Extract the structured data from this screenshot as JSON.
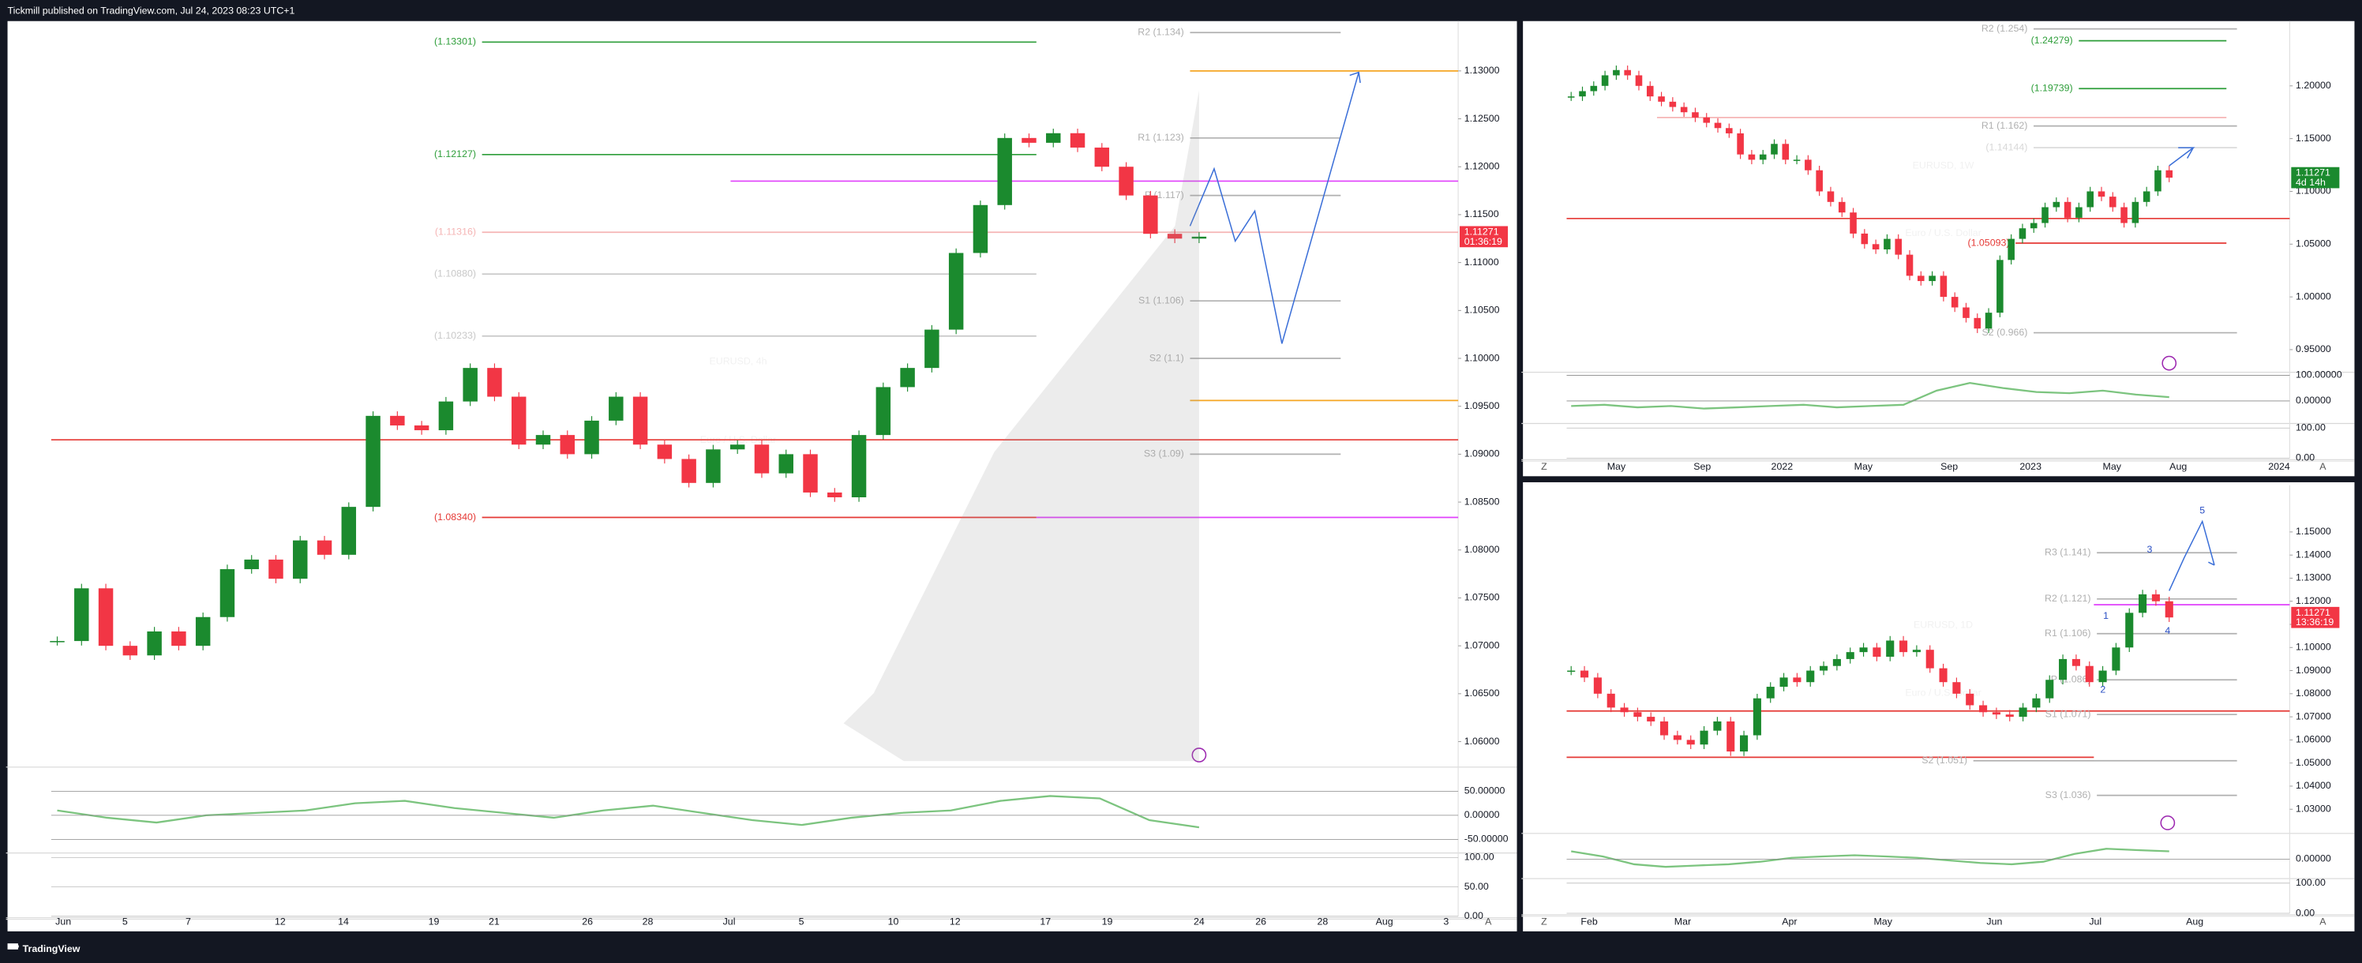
{
  "header": {
    "title": "Tickmill published on TradingView.com, Jul 24, 2023 08:23 UTC+1"
  },
  "footer": {
    "brand": "TradingView"
  },
  "panels": [
    {
      "symbol": "EURUSD, 4h",
      "description": "Euro / U.S. Dollar",
      "ylim": [
        1.0575,
        1.1352
      ],
      "yticks": [
        {
          "value": 1.06,
          "label": "1.06000"
        },
        {
          "value": 1.065,
          "label": "1.06500"
        },
        {
          "value": 1.07,
          "label": "1.07000"
        },
        {
          "value": 1.075,
          "label": "1.07500"
        },
        {
          "value": 1.08,
          "label": "1.08000"
        },
        {
          "value": 1.085,
          "label": "1.08500"
        },
        {
          "value": 1.09,
          "label": "1.09000"
        },
        {
          "value": 1.095,
          "label": "1.09500"
        },
        {
          "value": 1.1,
          "label": "1.10000"
        },
        {
          "value": 1.105,
          "label": "1.10500"
        },
        {
          "value": 1.11,
          "label": "1.11000"
        },
        {
          "value": 1.115,
          "label": "1.11500"
        },
        {
          "value": 1.12,
          "label": "1.12000"
        },
        {
          "value": 1.125,
          "label": "1.12500"
        },
        {
          "value": 1.13,
          "label": "1.13000"
        }
      ],
      "price_label": {
        "price": "1.11271",
        "countdown": "01:36:19",
        "color": "#f23645"
      },
      "closes": [
        1.0705,
        1.076,
        1.07,
        1.069,
        1.0715,
        1.07,
        1.073,
        1.078,
        1.079,
        1.077,
        1.081,
        1.0795,
        1.0845,
        1.094,
        1.093,
        1.0925,
        1.0955,
        1.099,
        1.096,
        1.091,
        1.092,
        1.09,
        1.0935,
        1.096,
        1.091,
        1.0895,
        1.087,
        1.0905,
        1.091,
        1.088,
        1.09,
        1.086,
        1.0855,
        1.092,
        1.097,
        1.099,
        1.103,
        1.111,
        1.116,
        1.123,
        1.1225,
        1.1235,
        1.122,
        1.12,
        1.117,
        1.113,
        1.1125,
        1.1127
      ],
      "levels": [
        {
          "label": "(1.13301)",
          "value": 1.13301,
          "color": "#2e9e3a"
        },
        {
          "label": "(1.12127)",
          "value": 1.12127,
          "color": "#2e9e3a"
        },
        {
          "label": "(1.11316)",
          "value": 1.11316,
          "color": "#f5b5b5"
        },
        {
          "label": "(1.10880)",
          "value": 1.1088,
          "color": "#c8c8c8"
        },
        {
          "label": "(1.10233)",
          "value": 1.10233,
          "color": "#c8c8c8"
        },
        {
          "label": "(1.08340)",
          "value": 1.0834,
          "color": "#e53935"
        },
        {
          "label": "R2 (1.134)",
          "value": 1.134,
          "color": "#b0b0b0"
        },
        {
          "label": "R1 (1.123)",
          "value": 1.123,
          "color": "#b0b0b0"
        },
        {
          "label": "P (1.117)",
          "value": 1.117,
          "color": "#b0b0b0"
        },
        {
          "label": "S1 (1.106)",
          "value": 1.106,
          "color": "#b0b0b0"
        },
        {
          "label": "S2 (1.1)",
          "value": 1.1,
          "color": "#b0b0b0"
        },
        {
          "label": "S3 (1.09)",
          "value": 1.09,
          "color": "#b0b0b0"
        }
      ],
      "lines": [
        {
          "value": 1.13,
          "color": "#f5a623"
        },
        {
          "value": 1.1185,
          "color": "#e040fb"
        },
        {
          "value": 1.0956,
          "color": "#f5a623"
        },
        {
          "value": 1.0915,
          "color": "#e53935"
        },
        {
          "value": 1.0834,
          "color": "#e040fb"
        }
      ],
      "osc_ylim": [
        -75,
        97
      ],
      "osc_ticks": [
        {
          "value": 50,
          "label": "50.00000"
        },
        {
          "value": 0,
          "label": "0.00000"
        },
        {
          "value": -50,
          "label": "-50.00000"
        }
      ],
      "osc_values": [
        10,
        -5,
        -15,
        0,
        5,
        10,
        25,
        30,
        15,
        5,
        -5,
        10,
        20,
        5,
        -10,
        -20,
        -5,
        5,
        10,
        30,
        40,
        35,
        -10,
        -25
      ],
      "osc2_ticks": [
        {
          "value": 100,
          "label": "100.00"
        },
        {
          "value": 50,
          "label": "50.00"
        },
        {
          "value": 0,
          "label": "0.00"
        }
      ],
      "time_labels": [
        "Jun",
        "5",
        "7",
        "12",
        "14",
        "19",
        "21",
        "26",
        "28",
        "Jul",
        "5",
        "10",
        "12",
        "17",
        "19",
        "24",
        "26",
        "28",
        "Aug",
        "3"
      ],
      "buttons": [
        "A"
      ]
    },
    {
      "symbol": "EURUSD, 1W",
      "description": "Euro / U.S. Dollar",
      "ylim": [
        0.93,
        1.2614
      ],
      "yticks": [
        {
          "value": 0.95,
          "label": "0.95000"
        },
        {
          "value": 1,
          "label": "1.00000"
        },
        {
          "value": 1.05,
          "label": "1.05000"
        },
        {
          "value": 1.1,
          "label": "1.10000"
        },
        {
          "value": 1.15,
          "label": "1.15000"
        },
        {
          "value": 1.2,
          "label": "1.20000"
        }
      ],
      "price_label": {
        "price": "1.11271",
        "countdown": "4d 14h",
        "color": "#1b8a2e"
      },
      "closes": [
        1.19,
        1.195,
        1.2,
        1.21,
        1.215,
        1.21,
        1.2,
        1.19,
        1.185,
        1.18,
        1.175,
        1.17,
        1.165,
        1.16,
        1.155,
        1.135,
        1.13,
        1.135,
        1.145,
        1.13,
        1.13,
        1.12,
        1.1,
        1.09,
        1.08,
        1.06,
        1.05,
        1.045,
        1.055,
        1.04,
        1.02,
        1.015,
        1.02,
        1,
        0.99,
        0.98,
        0.97,
        0.985,
        1.035,
        1.055,
        1.065,
        1.07,
        1.085,
        1.09,
        1.075,
        1.085,
        1.1,
        1.095,
        1.085,
        1.07,
        1.09,
        1.1,
        1.12,
        1.113
      ],
      "levels": [
        {
          "label": "R2 (1.254)",
          "value": 1.254,
          "color": "#b0b0b0"
        },
        {
          "label": "(1.24279)",
          "value": 1.24279,
          "color": "#2e9e3a"
        },
        {
          "label": "(1.19739)",
          "value": 1.19739,
          "color": "#2e9e3a"
        },
        {
          "label": "R1 (1.162)",
          "value": 1.162,
          "color": "#b0b0b0"
        },
        {
          "label": "(1.14144)",
          "value": 1.14144,
          "color": "#d8d8d8"
        },
        {
          "label": "(1.05093)",
          "value": 1.05093,
          "color": "#e53935"
        },
        {
          "label": "S2 (0.966)",
          "value": 0.966,
          "color": "#b0b0b0"
        }
      ],
      "lines": [
        {
          "value": 1.0743,
          "color": "#e53935"
        },
        {
          "value": 1.17,
          "color": "#f5b5b5"
        }
      ],
      "osc_ylim": [
        -82,
        106
      ],
      "osc_ticks": [
        {
          "value": 100,
          "label": "100.00000"
        },
        {
          "value": 0,
          "label": "0.00000"
        }
      ],
      "osc_values": [
        -20,
        -15,
        -25,
        -20,
        -30,
        -25,
        -20,
        -15,
        -25,
        -20,
        -15,
        40,
        70,
        50,
        35,
        30,
        40,
        25,
        15
      ],
      "osc2_ticks": [
        {
          "value": 100,
          "label": "100.00"
        },
        {
          "value": 0,
          "label": "0.00"
        }
      ],
      "time_labels": [
        "May",
        "Sep",
        "2022",
        "May",
        "Sep",
        "2023",
        "May",
        "Aug",
        "2024"
      ],
      "buttons": [
        "Z",
        "A"
      ]
    },
    {
      "symbol": "EURUSD, 1D",
      "description": "Euro / U.S. Dollar",
      "ylim": [
        1.0202,
        1.1702
      ],
      "yticks": [
        {
          "value": 1.03,
          "label": "1.03000"
        },
        {
          "value": 1.04,
          "label": "1.04000"
        },
        {
          "value": 1.05,
          "label": "1.05000"
        },
        {
          "value": 1.06,
          "label": "1.06000"
        },
        {
          "value": 1.07,
          "label": "1.07000"
        },
        {
          "value": 1.08,
          "label": "1.08000"
        },
        {
          "value": 1.09,
          "label": "1.09000"
        },
        {
          "value": 1.1,
          "label": "1.10000"
        },
        {
          "value": 1.11,
          "label": "1.11000"
        },
        {
          "value": 1.12,
          "label": "1.12000"
        },
        {
          "value": 1.13,
          "label": "1.13000"
        },
        {
          "value": 1.14,
          "label": "1.14000"
        },
        {
          "value": 1.15,
          "label": "1.15000"
        }
      ],
      "price_label": {
        "price": "1.11271",
        "countdown": "13:36:19",
        "color": "#f23645"
      },
      "closes": [
        1.09,
        1.087,
        1.08,
        1.074,
        1.072,
        1.07,
        1.068,
        1.062,
        1.06,
        1.058,
        1.064,
        1.068,
        1.055,
        1.062,
        1.078,
        1.083,
        1.087,
        1.085,
        1.09,
        1.092,
        1.095,
        1.098,
        1.1,
        1.096,
        1.103,
        1.098,
        1.099,
        1.091,
        1.085,
        1.08,
        1.075,
        1.072,
        1.071,
        1.07,
        1.074,
        1.078,
        1.086,
        1.095,
        1.092,
        1.085,
        1.09,
        1.1,
        1.115,
        1.123,
        1.12,
        1.113
      ],
      "levels": [
        {
          "label": "R3 (1.141)",
          "value": 1.141,
          "color": "#b0b0b0"
        },
        {
          "label": "R2 (1.121)",
          "value": 1.121,
          "color": "#b0b0b0"
        },
        {
          "label": "R1 (1.106)",
          "value": 1.106,
          "color": "#b0b0b0"
        },
        {
          "label": "P (1.086)",
          "value": 1.086,
          "color": "#b0b0b0"
        },
        {
          "label": "S1 (1.071)",
          "value": 1.071,
          "color": "#b0b0b0"
        },
        {
          "label": "S2 (1.051)",
          "value": 1.051,
          "color": "#b0b0b0"
        },
        {
          "label": "S3 (1.036)",
          "value": 1.036,
          "color": "#b0b0b0"
        }
      ],
      "lines": [
        {
          "value": 1.0725,
          "color": "#e53935"
        },
        {
          "value": 1.0525,
          "color": "#e53935"
        },
        {
          "value": 1.1185,
          "color": "#e040fb"
        }
      ],
      "wave_labels": [
        1,
        2,
        3,
        4,
        5
      ],
      "osc_ylim": [
        -70,
        94
      ],
      "osc_ticks": [
        {
          "value": 0,
          "label": "0.00000"
        }
      ],
      "osc_values": [
        30,
        10,
        -20,
        -30,
        -25,
        -20,
        -10,
        5,
        10,
        15,
        10,
        5,
        -5,
        -15,
        -20,
        -10,
        20,
        40,
        35,
        30
      ],
      "osc2_ticks": [
        {
          "value": 100,
          "label": "100.00"
        },
        {
          "value": 0,
          "label": "0.00"
        }
      ],
      "time_labels": [
        "Feb",
        "Mar",
        "Apr",
        "May",
        "Jun",
        "Jul",
        "Aug"
      ],
      "buttons": [
        "Z",
        "A"
      ]
    }
  ]
}
